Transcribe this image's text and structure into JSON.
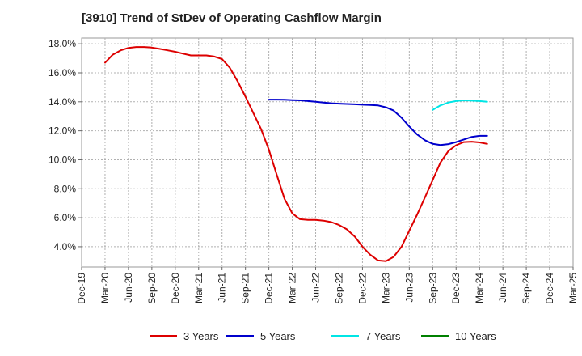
{
  "chart_data": {
    "type": "line",
    "title": "[3910]  Trend of StDev of Operating Cashflow Margin",
    "xlabel": "",
    "ylabel": "",
    "categories": [
      "Dec-19",
      "Mar-20",
      "Jun-20",
      "Sep-20",
      "Dec-20",
      "Mar-21",
      "Jun-21",
      "Sep-21",
      "Dec-21",
      "Mar-22",
      "Jun-22",
      "Sep-22",
      "Dec-22",
      "Mar-23",
      "Jun-23",
      "Sep-23",
      "Dec-23",
      "Mar-24",
      "Jun-24",
      "Sep-24",
      "Dec-24",
      "Mar-25"
    ],
    "y_ticks": [
      "4.0%",
      "6.0%",
      "8.0%",
      "10.0%",
      "12.0%",
      "14.0%",
      "16.0%",
      "18.0%"
    ],
    "ylim": [
      2.6,
      18.4
    ],
    "grid": true,
    "legend_position": "bottom",
    "series": [
      {
        "name": "3 Years",
        "color": "#dd0000",
        "points": [
          [
            1,
            16.7
          ],
          [
            1.33,
            17.25
          ],
          [
            1.67,
            17.55
          ],
          [
            2,
            17.72
          ],
          [
            2.33,
            17.78
          ],
          [
            2.67,
            17.78
          ],
          [
            3,
            17.74
          ],
          [
            3.33,
            17.65
          ],
          [
            3.67,
            17.55
          ],
          [
            4,
            17.45
          ],
          [
            4.33,
            17.32
          ],
          [
            4.67,
            17.2
          ],
          [
            5,
            17.2
          ],
          [
            5.33,
            17.2
          ],
          [
            5.67,
            17.12
          ],
          [
            6,
            16.95
          ],
          [
            6.33,
            16.35
          ],
          [
            6.67,
            15.4
          ],
          [
            7,
            14.35
          ],
          [
            7.33,
            13.25
          ],
          [
            7.67,
            12.1
          ],
          [
            8,
            10.7
          ],
          [
            8.33,
            9.0
          ],
          [
            8.67,
            7.3
          ],
          [
            9,
            6.3
          ],
          [
            9.33,
            5.9
          ],
          [
            9.67,
            5.85
          ],
          [
            10,
            5.85
          ],
          [
            10.33,
            5.8
          ],
          [
            10.67,
            5.7
          ],
          [
            11,
            5.5
          ],
          [
            11.33,
            5.2
          ],
          [
            11.67,
            4.7
          ],
          [
            12,
            4.0
          ],
          [
            12.33,
            3.45
          ],
          [
            12.67,
            3.05
          ],
          [
            13,
            3.0
          ],
          [
            13.33,
            3.3
          ],
          [
            13.67,
            4.0
          ],
          [
            14,
            5.1
          ],
          [
            14.33,
            6.2
          ],
          [
            14.67,
            7.4
          ],
          [
            15,
            8.6
          ],
          [
            15.33,
            9.8
          ],
          [
            15.67,
            10.6
          ],
          [
            16,
            11.0
          ],
          [
            16.33,
            11.22
          ],
          [
            16.67,
            11.25
          ],
          [
            17,
            11.2
          ],
          [
            17.33,
            11.1
          ]
        ]
      },
      {
        "name": "5 Years",
        "color": "#0000cc",
        "points": [
          [
            8,
            14.15
          ],
          [
            8.33,
            14.15
          ],
          [
            8.67,
            14.14
          ],
          [
            9,
            14.12
          ],
          [
            9.33,
            14.1
          ],
          [
            9.67,
            14.05
          ],
          [
            10,
            14.0
          ],
          [
            10.33,
            13.95
          ],
          [
            10.67,
            13.9
          ],
          [
            11,
            13.87
          ],
          [
            11.33,
            13.85
          ],
          [
            11.67,
            13.83
          ],
          [
            12,
            13.8
          ],
          [
            12.33,
            13.78
          ],
          [
            12.67,
            13.75
          ],
          [
            13,
            13.62
          ],
          [
            13.33,
            13.4
          ],
          [
            13.67,
            12.9
          ],
          [
            14,
            12.3
          ],
          [
            14.33,
            11.75
          ],
          [
            14.67,
            11.35
          ],
          [
            15,
            11.1
          ],
          [
            15.33,
            11.02
          ],
          [
            15.67,
            11.08
          ],
          [
            16,
            11.22
          ],
          [
            16.33,
            11.4
          ],
          [
            16.67,
            11.58
          ],
          [
            17,
            11.65
          ],
          [
            17.33,
            11.65
          ]
        ]
      },
      {
        "name": "7 Years",
        "color": "#00e5e5",
        "points": [
          [
            15,
            13.45
          ],
          [
            15.33,
            13.75
          ],
          [
            15.67,
            13.95
          ],
          [
            16,
            14.05
          ],
          [
            16.33,
            14.1
          ],
          [
            16.67,
            14.08
          ],
          [
            17,
            14.05
          ],
          [
            17.33,
            14.0
          ]
        ]
      },
      {
        "name": "10 Years",
        "color": "#008000",
        "points": []
      }
    ]
  }
}
